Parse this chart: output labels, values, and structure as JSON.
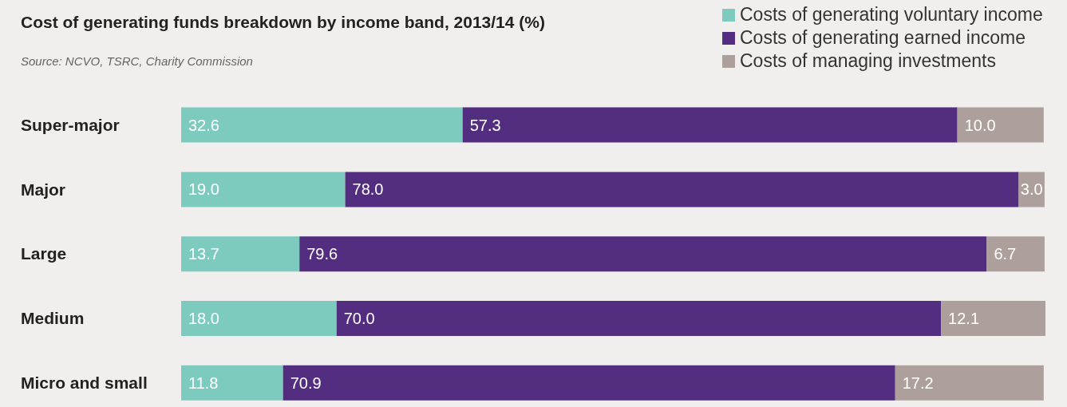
{
  "chart_data": {
    "type": "bar",
    "orientation": "horizontal",
    "stacked": true,
    "title": "Cost of generating funds breakdown by income band, 2013/14 (%)",
    "annotations": [
      "Source: NCVO, TSRC, Charity Commission"
    ],
    "categories": [
      "Super-major",
      "Major",
      "Large",
      "Medium",
      "Micro and small"
    ],
    "legend": "top right",
    "series": [
      {
        "name": "Costs of generating voluntary income",
        "color": "#7dcbbf",
        "values": [
          32.6,
          19.0,
          13.7,
          18.0,
          11.8
        ],
        "value_labels": [
          "32.6",
          "19.0",
          "13.7",
          "18.0",
          "11.8"
        ]
      },
      {
        "name": "Costs of generating earned income",
        "color": "#532e80",
        "values": [
          57.3,
          78.0,
          79.6,
          70.0,
          70.9
        ],
        "value_labels": [
          "57.3",
          "78.0",
          "79.6",
          "70.0",
          "70.9"
        ]
      },
      {
        "name": "Costs of managing investments",
        "color": "#ada09c",
        "values": [
          10.0,
          3.0,
          6.7,
          12.1,
          17.2
        ],
        "value_labels": [
          "10.0",
          "3.0",
          "6.7",
          "12.1",
          "17.2"
        ]
      }
    ]
  }
}
